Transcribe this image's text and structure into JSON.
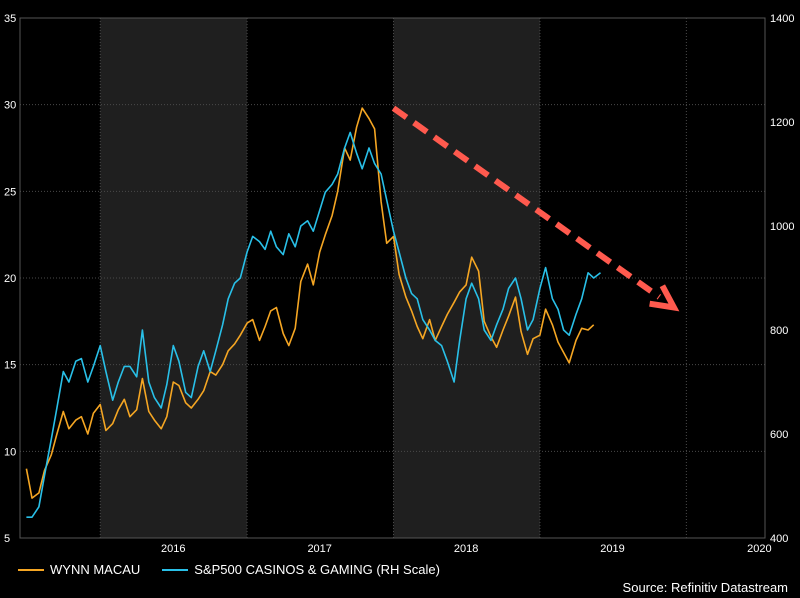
{
  "chart_data": {
    "type": "line",
    "title": "",
    "x_ticks": [
      "2016",
      "2017",
      "2018",
      "2019",
      "2020"
    ],
    "y_left": {
      "range": [
        5,
        35
      ],
      "ticks": [
        "5",
        "10",
        "15",
        "20",
        "25",
        "30",
        "35"
      ]
    },
    "y_right": {
      "range": [
        400,
        1400
      ],
      "ticks": [
        "400",
        "600",
        "800",
        "1000",
        "1200",
        "1400"
      ]
    },
    "shaded_years": [
      "2016",
      "2018"
    ],
    "series": [
      {
        "name": "WYNN MACAU",
        "axis": "left",
        "color": "#F5A623",
        "points": [
          [
            "2015-07-01",
            9.0
          ],
          [
            "2015-07-15",
            7.3
          ],
          [
            "2015-08-01",
            7.6
          ],
          [
            "2015-08-15",
            8.9
          ],
          [
            "2015-09-01",
            9.8
          ],
          [
            "2015-09-15",
            11.0
          ],
          [
            "2015-10-01",
            12.3
          ],
          [
            "2015-10-15",
            11.3
          ],
          [
            "2015-11-01",
            11.8
          ],
          [
            "2015-11-15",
            12.0
          ],
          [
            "2015-12-01",
            11.0
          ],
          [
            "2015-12-15",
            12.2
          ],
          [
            "2016-01-01",
            12.7
          ],
          [
            "2016-01-15",
            11.2
          ],
          [
            "2016-02-01",
            11.6
          ],
          [
            "2016-02-15",
            12.4
          ],
          [
            "2016-03-01",
            13.0
          ],
          [
            "2016-03-15",
            12.0
          ],
          [
            "2016-04-01",
            12.4
          ],
          [
            "2016-04-15",
            14.2
          ],
          [
            "2016-05-01",
            12.3
          ],
          [
            "2016-05-15",
            11.8
          ],
          [
            "2016-06-01",
            11.3
          ],
          [
            "2016-06-15",
            12.0
          ],
          [
            "2016-07-01",
            14.0
          ],
          [
            "2016-07-15",
            13.8
          ],
          [
            "2016-08-01",
            12.8
          ],
          [
            "2016-08-15",
            12.5
          ],
          [
            "2016-09-01",
            13.0
          ],
          [
            "2016-09-15",
            13.5
          ],
          [
            "2016-10-01",
            14.6
          ],
          [
            "2016-10-15",
            14.4
          ],
          [
            "2016-11-01",
            15.0
          ],
          [
            "2016-11-15",
            15.8
          ],
          [
            "2016-12-01",
            16.2
          ],
          [
            "2016-12-15",
            16.7
          ],
          [
            "2017-01-01",
            17.4
          ],
          [
            "2017-01-15",
            17.6
          ],
          [
            "2017-02-01",
            16.4
          ],
          [
            "2017-02-15",
            17.2
          ],
          [
            "2017-03-01",
            18.1
          ],
          [
            "2017-03-15",
            18.3
          ],
          [
            "2017-04-01",
            16.8
          ],
          [
            "2017-04-15",
            16.1
          ],
          [
            "2017-05-01",
            17.1
          ],
          [
            "2017-05-15",
            19.8
          ],
          [
            "2017-06-01",
            20.8
          ],
          [
            "2017-06-15",
            19.6
          ],
          [
            "2017-07-01",
            21.5
          ],
          [
            "2017-07-15",
            22.5
          ],
          [
            "2017-08-01",
            23.6
          ],
          [
            "2017-08-15",
            25.0
          ],
          [
            "2017-09-01",
            27.5
          ],
          [
            "2017-09-15",
            26.8
          ],
          [
            "2017-10-01",
            28.7
          ],
          [
            "2017-10-15",
            29.8
          ],
          [
            "2017-11-01",
            29.2
          ],
          [
            "2017-11-15",
            28.6
          ],
          [
            "2017-12-01",
            24.4
          ],
          [
            "2017-12-15",
            22.0
          ],
          [
            "2018-01-01",
            22.4
          ],
          [
            "2018-01-15",
            20.2
          ],
          [
            "2018-02-01",
            18.9
          ],
          [
            "2018-02-15",
            18.1
          ],
          [
            "2018-03-01",
            17.2
          ],
          [
            "2018-03-15",
            16.5
          ],
          [
            "2018-04-01",
            17.6
          ],
          [
            "2018-04-15",
            16.4
          ],
          [
            "2018-05-01",
            17.2
          ],
          [
            "2018-05-15",
            17.9
          ],
          [
            "2018-06-01",
            18.6
          ],
          [
            "2018-06-15",
            19.2
          ],
          [
            "2018-07-01",
            19.6
          ],
          [
            "2018-07-15",
            21.2
          ],
          [
            "2018-08-01",
            20.4
          ],
          [
            "2018-08-15",
            17.5
          ],
          [
            "2018-09-01",
            16.6
          ],
          [
            "2018-09-15",
            16.0
          ],
          [
            "2018-10-01",
            17.0
          ],
          [
            "2018-10-15",
            17.8
          ],
          [
            "2018-11-01",
            18.9
          ],
          [
            "2018-11-15",
            16.9
          ],
          [
            "2018-12-01",
            15.6
          ],
          [
            "2018-12-15",
            16.5
          ],
          [
            "2019-01-01",
            16.7
          ],
          [
            "2019-01-15",
            18.2
          ],
          [
            "2019-02-01",
            17.3
          ],
          [
            "2019-02-15",
            16.3
          ],
          [
            "2019-03-01",
            15.7
          ],
          [
            "2019-03-15",
            15.1
          ],
          [
            "2019-04-01",
            16.4
          ],
          [
            "2019-04-15",
            17.1
          ],
          [
            "2019-05-01",
            17.0
          ],
          [
            "2019-05-15",
            17.3
          ]
        ]
      },
      {
        "name": "S&P500 CASINOS & GAMING (RH Scale)",
        "axis": "right",
        "color": "#29C0E8",
        "points": [
          [
            "2015-07-01",
            440
          ],
          [
            "2015-07-15",
            440
          ],
          [
            "2015-08-01",
            460
          ],
          [
            "2015-08-15",
            520
          ],
          [
            "2015-09-01",
            590
          ],
          [
            "2015-09-15",
            650
          ],
          [
            "2015-10-01",
            720
          ],
          [
            "2015-10-15",
            700
          ],
          [
            "2015-11-01",
            740
          ],
          [
            "2015-11-15",
            745
          ],
          [
            "2015-12-01",
            700
          ],
          [
            "2015-12-15",
            730
          ],
          [
            "2016-01-01",
            770
          ],
          [
            "2016-01-15",
            720
          ],
          [
            "2016-02-01",
            665
          ],
          [
            "2016-02-15",
            700
          ],
          [
            "2016-03-01",
            730
          ],
          [
            "2016-03-15",
            730
          ],
          [
            "2016-04-01",
            710
          ],
          [
            "2016-04-15",
            800
          ],
          [
            "2016-05-01",
            700
          ],
          [
            "2016-05-15",
            670
          ],
          [
            "2016-06-01",
            650
          ],
          [
            "2016-06-15",
            695
          ],
          [
            "2016-07-01",
            770
          ],
          [
            "2016-07-15",
            740
          ],
          [
            "2016-08-01",
            680
          ],
          [
            "2016-08-15",
            670
          ],
          [
            "2016-09-01",
            730
          ],
          [
            "2016-09-15",
            760
          ],
          [
            "2016-10-01",
            720
          ],
          [
            "2016-10-15",
            760
          ],
          [
            "2016-11-01",
            810
          ],
          [
            "2016-11-15",
            860
          ],
          [
            "2016-12-01",
            890
          ],
          [
            "2016-12-15",
            900
          ],
          [
            "2017-01-01",
            950
          ],
          [
            "2017-01-15",
            980
          ],
          [
            "2017-02-01",
            970
          ],
          [
            "2017-02-15",
            955
          ],
          [
            "2017-03-01",
            990
          ],
          [
            "2017-03-15",
            960
          ],
          [
            "2017-04-01",
            945
          ],
          [
            "2017-04-15",
            985
          ],
          [
            "2017-05-01",
            960
          ],
          [
            "2017-05-15",
            1000
          ],
          [
            "2017-06-01",
            1010
          ],
          [
            "2017-06-15",
            990
          ],
          [
            "2017-07-01",
            1030
          ],
          [
            "2017-07-15",
            1065
          ],
          [
            "2017-08-01",
            1080
          ],
          [
            "2017-08-15",
            1100
          ],
          [
            "2017-09-01",
            1150
          ],
          [
            "2017-09-15",
            1180
          ],
          [
            "2017-10-01",
            1140
          ],
          [
            "2017-10-15",
            1110
          ],
          [
            "2017-11-01",
            1150
          ],
          [
            "2017-11-15",
            1120
          ],
          [
            "2017-12-01",
            1100
          ],
          [
            "2017-12-15",
            1050
          ],
          [
            "2018-01-01",
            990
          ],
          [
            "2018-01-15",
            950
          ],
          [
            "2018-02-01",
            900
          ],
          [
            "2018-02-15",
            870
          ],
          [
            "2018-03-01",
            860
          ],
          [
            "2018-03-15",
            820
          ],
          [
            "2018-04-01",
            800
          ],
          [
            "2018-04-15",
            780
          ],
          [
            "2018-05-01",
            770
          ],
          [
            "2018-05-15",
            740
          ],
          [
            "2018-06-01",
            700
          ],
          [
            "2018-06-15",
            780
          ],
          [
            "2018-07-01",
            860
          ],
          [
            "2018-07-15",
            890
          ],
          [
            "2018-08-01",
            860
          ],
          [
            "2018-08-15",
            800
          ],
          [
            "2018-09-01",
            780
          ],
          [
            "2018-09-15",
            810
          ],
          [
            "2018-10-01",
            840
          ],
          [
            "2018-10-15",
            880
          ],
          [
            "2018-11-01",
            900
          ],
          [
            "2018-11-15",
            860
          ],
          [
            "2018-12-01",
            800
          ],
          [
            "2018-12-15",
            820
          ],
          [
            "2019-01-01",
            880
          ],
          [
            "2019-01-15",
            920
          ],
          [
            "2019-02-01",
            860
          ],
          [
            "2019-02-15",
            840
          ],
          [
            "2019-03-01",
            800
          ],
          [
            "2019-03-15",
            790
          ],
          [
            "2019-04-01",
            830
          ],
          [
            "2019-04-15",
            860
          ],
          [
            "2019-05-01",
            910
          ],
          [
            "2019-05-15",
            900
          ],
          [
            "2019-06-01",
            910
          ]
        ]
      }
    ],
    "annotation": {
      "type": "dashed-arrow",
      "color": "#FF5A4E",
      "from": [
        "2018-01-01",
        29.8
      ],
      "to": [
        "2019-12-01",
        18.3
      ]
    }
  },
  "legend": {
    "items": [
      {
        "label": "WYNN MACAU",
        "color": "#F5A623"
      },
      {
        "label": "S&P500 CASINOS & GAMING (RH Scale)",
        "color": "#29C0E8"
      }
    ]
  },
  "source": "Source: Refinitiv Datastream"
}
